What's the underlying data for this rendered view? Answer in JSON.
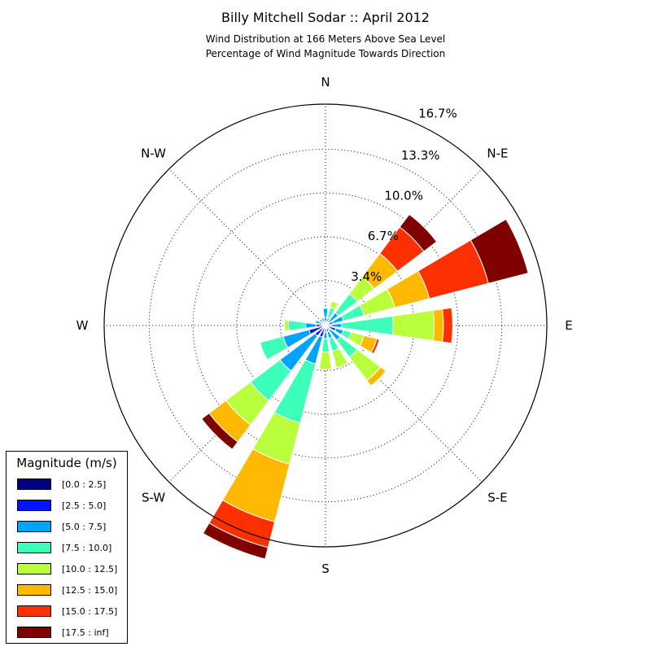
{
  "title": "Billy Mitchell Sodar :: April 2012",
  "subtitle_lines": [
    "Wind Distribution at 166 Meters Above Sea Level",
    "Percentage of Wind Magnitude Towards Direction"
  ],
  "legend": {
    "title": "Magnitude (m/s)",
    "items": [
      {
        "label": "[0.0 : 2.5]",
        "color": "#000080"
      },
      {
        "label": "[2.5 : 5.0]",
        "color": "#0015ff"
      },
      {
        "label": "[5.0 : 7.5]",
        "color": "#00a4ff"
      },
      {
        "label": "[7.5 : 10.0]",
        "color": "#3dffba"
      },
      {
        "label": "[10.0 : 12.5]",
        "color": "#b9ff3c"
      },
      {
        "label": "[12.5 : 15.0]",
        "color": "#ffb900"
      },
      {
        "label": "[15.0 : 17.5]",
        "color": "#ff3000"
      },
      {
        "label": "[17.5 : inf]",
        "color": "#800000"
      }
    ]
  },
  "chart_data": {
    "type": "windrose",
    "directions": [
      "N",
      "N-E",
      "E",
      "S-E",
      "S",
      "S-W",
      "W",
      "N-W"
    ],
    "radial_ticks": [
      "3.4%",
      "6.7%",
      "10.0%",
      "13.3%",
      "16.7%"
    ],
    "radial_max": 16.7,
    "grid": true,
    "legend_position": "lower-left",
    "bin_directions_deg": [
      0,
      22.5,
      45,
      67.5,
      90,
      112.5,
      135,
      157.5,
      180,
      202.5,
      225,
      247.5,
      270,
      292.5,
      315,
      337.5
    ],
    "cumulative_percent": [
      [
        0.2,
        0.6,
        1.3,
        1.4,
        1.4,
        1.4,
        1.4,
        1.4
      ],
      [
        0.1,
        0.3,
        0.6,
        1.4,
        1.9,
        1.9,
        1.9,
        1.9
      ],
      [
        0.1,
        0.3,
        1.2,
        3.0,
        4.6,
        6.8,
        9.3,
        10.5
      ],
      [
        0.1,
        0.6,
        1.4,
        3.0,
        5.4,
        8.1,
        12.7,
        15.8
      ],
      [
        0.1,
        0.4,
        1.2,
        5.1,
        8.2,
        8.9,
        9.6,
        9.6
      ],
      [
        0.1,
        0.8,
        1.4,
        2.0,
        3.0,
        4.0,
        4.2,
        4.2
      ],
      [
        0.1,
        0.4,
        1.4,
        3.0,
        5.2,
        5.7,
        5.7,
        5.7
      ],
      [
        0.1,
        0.5,
        1.0,
        2.0,
        3.3,
        3.3,
        3.3,
        3.3
      ],
      [
        0.1,
        0.5,
        1.0,
        2.0,
        3.3,
        3.3,
        3.3,
        3.3
      ],
      [
        0.1,
        0.9,
        3.0,
        7.6,
        10.8,
        15.3,
        17.3,
        18.2
      ],
      [
        0.1,
        1.0,
        4.3,
        7.1,
        9.4,
        11.0,
        11.0,
        11.7
      ],
      [
        0.1,
        1.3,
        3.3,
        5.1,
        5.1,
        5.1,
        5.1,
        5.1
      ],
      [
        0.1,
        0.7,
        1.5,
        2.8,
        3.1,
        3.1,
        3.1,
        3.1
      ],
      [
        0.1,
        0.3,
        0.8,
        0.8,
        0.8,
        0.8,
        0.8,
        0.8
      ],
      [
        0.1,
        0.4,
        0.6,
        0.6,
        0.6,
        0.6,
        0.6,
        0.6
      ],
      [
        0.1,
        0.3,
        0.6,
        0.6,
        0.6,
        0.6,
        0.6,
        0.6
      ]
    ]
  }
}
